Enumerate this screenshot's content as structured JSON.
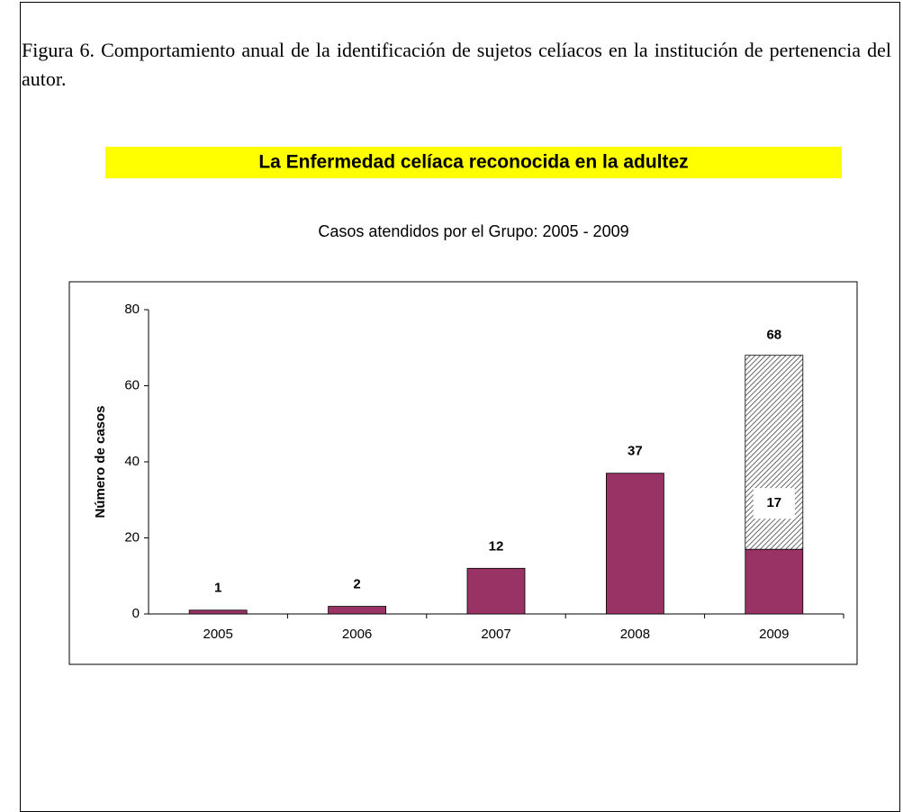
{
  "caption": "Figura 6. Comportamiento anual de la identificación de sujetos celíacos en la institución de pertenencia del autor.",
  "chart_data": {
    "type": "stacked_bar",
    "title": "La Enfermedad celíaca reconocida en la adultez",
    "subtitle": "Casos atendidos por el Grupo: 2005 - 2009",
    "y_label": "Número de casos",
    "categories": [
      "2005",
      "2006",
      "2007",
      "2008",
      "2009"
    ],
    "series": [
      {
        "color": "#993366",
        "values": [
          1,
          2,
          12,
          37,
          17
        ]
      },
      {
        "color": "#808080",
        "pattern": "hatch",
        "values": [
          null,
          null,
          null,
          null,
          51
        ]
      }
    ],
    "totals": [
      null,
      null,
      null,
      null,
      68
    ],
    "ylim": [
      0,
      80
    ],
    "yticks": [
      0,
      20,
      40,
      60,
      80
    ]
  }
}
